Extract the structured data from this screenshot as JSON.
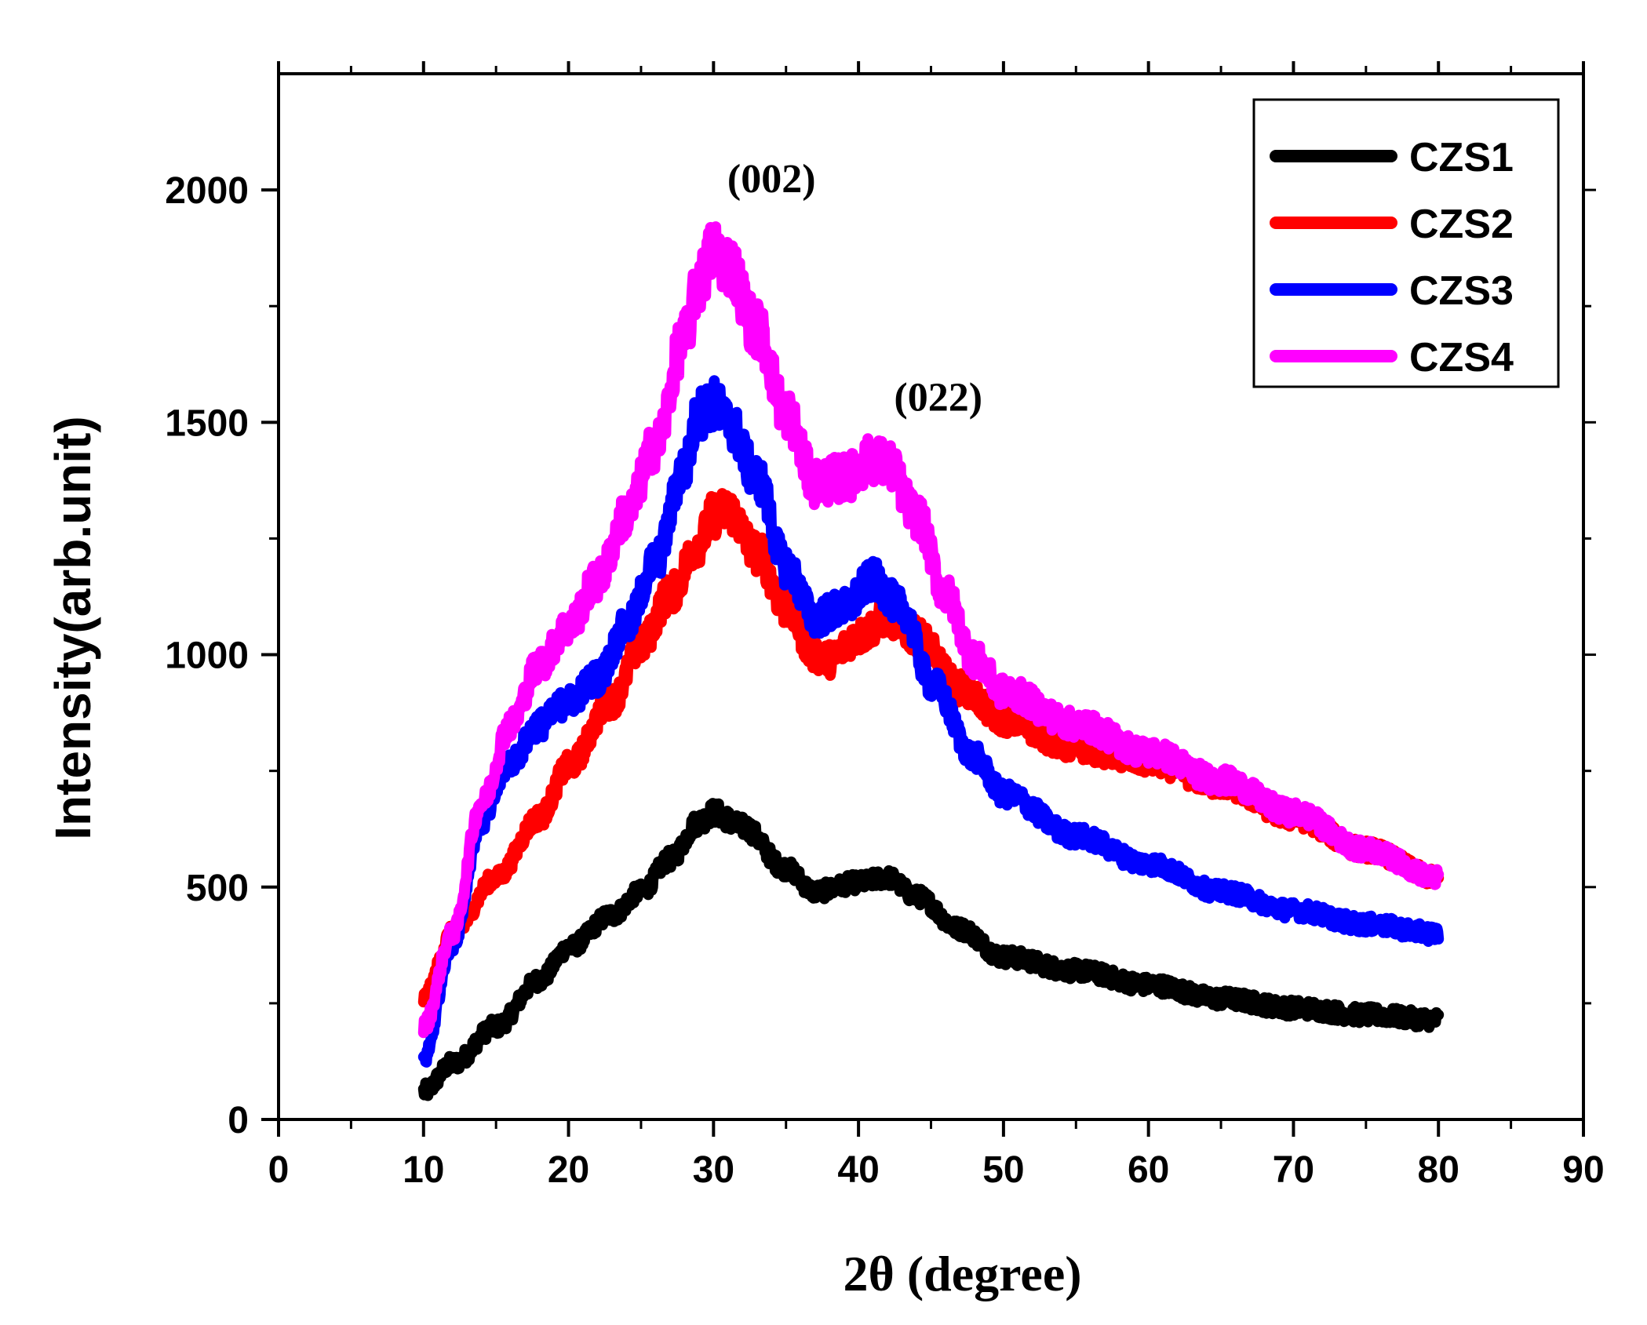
{
  "chart_data": {
    "type": "line",
    "title": "",
    "xlabel": "2θ (degree)",
    "ylabel": "Intensity(arb.unit)",
    "xlim": [
      0,
      90
    ],
    "ylim": [
      0,
      2250
    ],
    "xticks": [
      0,
      10,
      20,
      30,
      40,
      50,
      60,
      70,
      80,
      90
    ],
    "xtick_labels": [
      "0",
      "10",
      "20",
      "30",
      "40",
      "50",
      "60",
      "70",
      "80",
      "90"
    ],
    "yticks": [
      0,
      500,
      1000,
      1500,
      2000
    ],
    "ytick_labels": [
      "0",
      "500",
      "1000",
      "1500",
      "2000"
    ],
    "legend_position": "top-right",
    "series": [
      {
        "name": "CZS1",
        "color": "#000000",
        "x": [
          10,
          12,
          15,
          18,
          20,
          23,
          25,
          27,
          29,
          30,
          32,
          35,
          37,
          40,
          42,
          44,
          47,
          50,
          55,
          60,
          65,
          70,
          75,
          80
        ],
        "y": [
          60,
          120,
          200,
          300,
          370,
          440,
          490,
          560,
          640,
          660,
          630,
          540,
          490,
          510,
          520,
          480,
          410,
          350,
          320,
          290,
          260,
          240,
          225,
          215
        ]
      },
      {
        "name": "CZS2",
        "color": "#ff0000",
        "x": [
          10,
          12,
          15,
          18,
          20,
          23,
          25,
          27,
          29,
          30,
          31,
          33,
          35,
          37,
          38,
          40,
          42,
          44,
          47,
          50,
          55,
          60,
          65,
          70,
          75,
          80
        ],
        "y": [
          260,
          400,
          520,
          650,
          760,
          900,
          1020,
          1130,
          1240,
          1300,
          1310,
          1220,
          1100,
          1000,
          990,
          1040,
          1080,
          1040,
          930,
          860,
          800,
          770,
          720,
          650,
          580,
          520
        ]
      },
      {
        "name": "CZS3",
        "color": "#0000ff",
        "x": [
          10,
          12,
          14,
          16,
          18,
          20,
          22,
          24,
          26,
          28,
          29,
          30,
          31,
          33,
          35,
          37,
          39,
          41,
          43,
          45,
          48,
          50,
          55,
          60,
          65,
          70,
          75,
          80
        ],
        "y": [
          130,
          380,
          640,
          770,
          850,
          900,
          950,
          1060,
          1200,
          1400,
          1520,
          1540,
          1500,
          1380,
          1190,
          1080,
          1100,
          1160,
          1100,
          940,
          780,
          700,
          610,
          550,
          490,
          450,
          420,
          400
        ]
      },
      {
        "name": "CZS4",
        "color": "#ff00ff",
        "x": [
          10,
          12,
          14,
          16,
          18,
          20,
          22,
          24,
          26,
          28,
          29,
          30,
          31,
          33,
          35,
          37,
          39,
          41,
          42,
          44,
          46,
          48,
          50,
          55,
          60,
          65,
          70,
          75,
          80
        ],
        "y": [
          200,
          400,
          680,
          850,
          980,
          1060,
          1160,
          1300,
          1450,
          1680,
          1800,
          1870,
          1840,
          1700,
          1520,
          1370,
          1380,
          1420,
          1410,
          1300,
          1130,
          990,
          920,
          850,
          790,
          730,
          660,
          580,
          520
        ]
      }
    ],
    "annotations": [
      {
        "text": "(002)",
        "x": 34,
        "y": 1995
      },
      {
        "text": "(022)",
        "x": 45.5,
        "y": 1525
      }
    ]
  }
}
